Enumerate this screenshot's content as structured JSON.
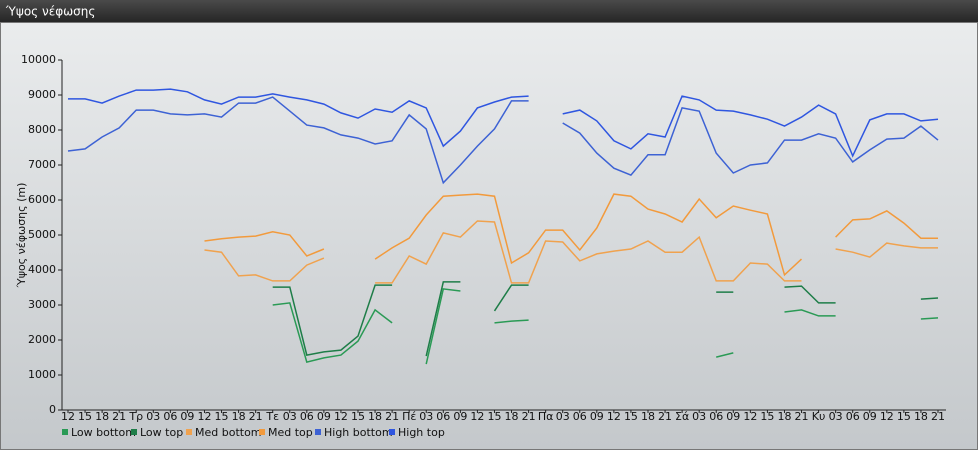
{
  "chart_data": {
    "type": "line",
    "title": "Ύψος νέφωσης",
    "y_label": "Ύψος νέφωσης (m)",
    "categories": [
      "12",
      "15",
      "18",
      "21",
      "Τρ",
      "03",
      "06",
      "09",
      "12",
      "15",
      "18",
      "21",
      "Τε",
      "03",
      "06",
      "09",
      "12",
      "15",
      "18",
      "21",
      "Πέ",
      "03",
      "06",
      "09",
      "12",
      "15",
      "18",
      "21",
      "Πα",
      "03",
      "06",
      "09",
      "12",
      "15",
      "18",
      "21",
      "Σά",
      "03",
      "06",
      "09",
      "12",
      "15",
      "18",
      "21",
      "Κυ",
      "03",
      "06",
      "09",
      "12",
      "15",
      "18",
      "21"
    ],
    "ylim": [
      0,
      10000
    ],
    "yticks": [
      0,
      1000,
      2000,
      3000,
      4000,
      5000,
      6000,
      7000,
      8000,
      9000,
      10000
    ],
    "series": [
      {
        "name": "Low bottom",
        "color": "#2a9a55",
        "values": [
          null,
          null,
          null,
          null,
          null,
          null,
          null,
          null,
          null,
          null,
          null,
          null,
          3000,
          3060,
          1370,
          1490,
          1570,
          1970,
          2860,
          2490,
          null,
          1310,
          3460,
          3400,
          null,
          2490,
          2540,
          2570,
          null,
          null,
          null,
          null,
          null,
          null,
          null,
          null,
          null,
          null,
          1510,
          1630,
          null,
          null,
          2800,
          2860,
          2690,
          2690,
          null,
          null,
          null,
          null,
          2600,
          2630
        ]
      },
      {
        "name": "Low top",
        "color": "#1e7d48",
        "values": [
          null,
          null,
          null,
          null,
          null,
          null,
          null,
          null,
          null,
          null,
          null,
          null,
          3510,
          3510,
          1570,
          1660,
          1710,
          2110,
          3570,
          3570,
          null,
          1540,
          3660,
          3660,
          null,
          2830,
          3570,
          3570,
          null,
          null,
          null,
          null,
          null,
          null,
          null,
          null,
          null,
          null,
          3370,
          3370,
          null,
          null,
          3510,
          3540,
          3060,
          3060,
          null,
          null,
          null,
          null,
          3170,
          3200
        ]
      },
      {
        "name": "Med bottom",
        "color": "#f0a24e",
        "values": [
          null,
          null,
          null,
          null,
          null,
          null,
          null,
          null,
          4570,
          4510,
          3830,
          3860,
          3690,
          3690,
          4140,
          4340,
          null,
          null,
          3630,
          3630,
          4400,
          4170,
          5060,
          4940,
          5400,
          5370,
          3630,
          3630,
          4830,
          4800,
          4260,
          4460,
          4540,
          4600,
          4830,
          4510,
          4510,
          4940,
          3690,
          3690,
          4200,
          4170,
          3690,
          3690,
          null,
          4600,
          4510,
          4370,
          4770,
          4690,
          4630,
          4630
        ]
      },
      {
        "name": "Med top",
        "color": "#f29a3c",
        "values": [
          null,
          null,
          null,
          null,
          null,
          null,
          null,
          null,
          4830,
          4890,
          4940,
          4970,
          5090,
          5000,
          4400,
          4600,
          null,
          null,
          4310,
          4630,
          4910,
          5570,
          6110,
          6140,
          6170,
          6110,
          4200,
          4490,
          5140,
          5140,
          4570,
          5200,
          6170,
          6110,
          5740,
          5600,
          5370,
          6030,
          5490,
          5830,
          5710,
          5600,
          3860,
          4310,
          null,
          4940,
          5430,
          5460,
          5690,
          5340,
          4910,
          4910
        ]
      },
      {
        "name": "High bottom",
        "color": "#3d62d4",
        "values": [
          7400,
          7460,
          7800,
          8060,
          8570,
          8570,
          8460,
          8430,
          8460,
          8370,
          8770,
          8770,
          8940,
          8540,
          8140,
          8060,
          7860,
          7770,
          7600,
          7690,
          8430,
          8030,
          6490,
          7000,
          7540,
          8030,
          8830,
          8830,
          null,
          8200,
          7910,
          7340,
          6910,
          6710,
          7290,
          7290,
          8630,
          8540,
          7340,
          6770,
          7000,
          7060,
          7710,
          7710,
          7890,
          7770,
          7090,
          7430,
          7740,
          7770,
          8110,
          7710
        ]
      },
      {
        "name": "High top",
        "color": "#2f56e0",
        "values": [
          8890,
          8890,
          8770,
          8970,
          9140,
          9140,
          9170,
          9090,
          8860,
          8740,
          8940,
          8940,
          9030,
          8940,
          8860,
          8740,
          8490,
          8340,
          8600,
          8510,
          8830,
          8630,
          7540,
          7970,
          8630,
          8800,
          8940,
          8970,
          null,
          8460,
          8570,
          8260,
          7690,
          7460,
          7890,
          7800,
          8970,
          8860,
          8570,
          8540,
          8430,
          8310,
          8110,
          8370,
          8710,
          8460,
          7260,
          8290,
          8460,
          8460,
          8260,
          8310
        ]
      }
    ]
  }
}
